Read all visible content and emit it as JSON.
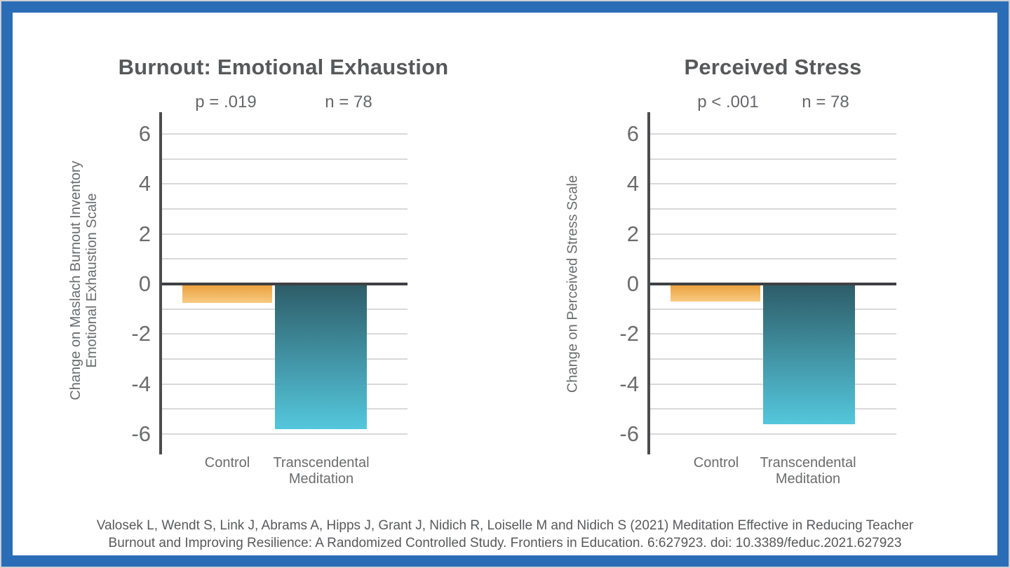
{
  "page": {
    "citation_lines": [
      "Valosek L, Wendt S, Link J, Abrams A, Hipps J, Grant J, Nidich R, Loiselle M and Nidich S (2021) Meditation Effective in Reducing Teacher",
      "Burnout and Improving Resilience: A Randomized Controlled Study. Frontiers in Education. 6:627923. doi: 10.3389/feduc.2021.627923"
    ]
  },
  "colors": {
    "frame_blue": "#2b6cb6",
    "control_bar_top": "#eba23f",
    "control_bar_bottom": "#f8ca82",
    "tm_bar_top": "#2e5d69",
    "tm_bar_bottom": "#54c7dc",
    "axis_line": "#4b4c4e",
    "zero_line": "#3e4042",
    "gridline": "#d9d9db",
    "text_gray": "#6b6c6e",
    "title_gray": "#57585a"
  },
  "chart_data": [
    {
      "type": "bar",
      "title": "Burnout: Emotional Exhaustion",
      "p_label": "p = .019",
      "n_label": "n = 78",
      "ylabel_lines": [
        "Change on Maslach Burnout Inventory",
        "Emotional Exhaustion Scale"
      ],
      "categories": [
        "Control",
        "Transcendental Meditation"
      ],
      "values": [
        -0.75,
        -5.8
      ],
      "bar_styles": [
        "control",
        "tm"
      ],
      "axis": {
        "ticks": [
          6,
          4,
          2,
          0,
          -2,
          -4,
          -6
        ],
        "grid_step": 1,
        "grid_max": 6,
        "grid_min": -6,
        "ylim": [
          -6.9,
          6.9
        ],
        "grid": true
      },
      "legend": "none"
    },
    {
      "type": "bar",
      "title": "Perceived Stress",
      "p_label": "p < .001",
      "n_label": "n = 78",
      "ylabel_lines": [
        "Change on Perceived Stress Scale"
      ],
      "categories": [
        "Control",
        "Transcendental Meditation"
      ],
      "values": [
        -0.7,
        -5.6
      ],
      "bar_styles": [
        "control",
        "tm"
      ],
      "axis": {
        "ticks": [
          6,
          4,
          2,
          0,
          -2,
          -4,
          -6
        ],
        "grid_step": 1,
        "grid_max": 6,
        "grid_min": -6,
        "ylim": [
          -6.9,
          6.9
        ],
        "grid": true
      },
      "legend": "none"
    }
  ]
}
